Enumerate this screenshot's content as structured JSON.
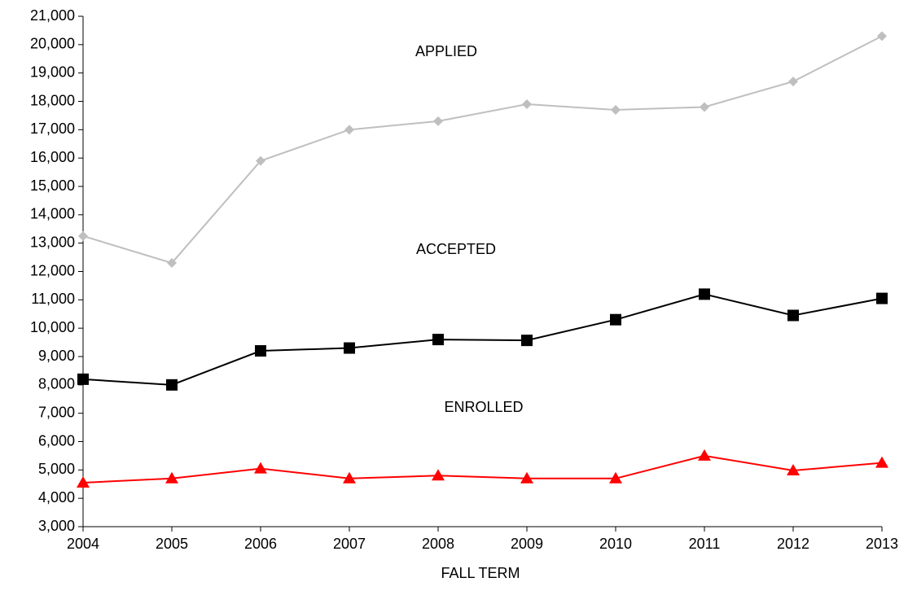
{
  "chart_data": {
    "type": "line",
    "x_label": "FALL TERM",
    "x": [
      2004,
      2005,
      2006,
      2007,
      2008,
      2009,
      2010,
      2011,
      2012,
      2013
    ],
    "xlim": [
      2004,
      2013
    ],
    "xticks": [
      2004,
      2005,
      2006,
      2007,
      2008,
      2009,
      2010,
      2011,
      2012,
      2013
    ],
    "ylim": [
      3000,
      21000
    ],
    "yticks": [
      {
        "value": 3000,
        "label": "3,000"
      },
      {
        "value": 4000,
        "label": "4,000"
      },
      {
        "value": 5000,
        "label": "5,000"
      },
      {
        "value": 6000,
        "label": "6,000"
      },
      {
        "value": 7000,
        "label": "7,000"
      },
      {
        "value": 8000,
        "label": "8,000"
      },
      {
        "value": 9000,
        "label": "9,000"
      },
      {
        "value": 10000,
        "label": "10,000"
      },
      {
        "value": 11000,
        "label": "11,000"
      },
      {
        "value": 12000,
        "label": "12,000"
      },
      {
        "value": 13000,
        "label": "13,000"
      },
      {
        "value": 14000,
        "label": "14,000"
      },
      {
        "value": 15000,
        "label": "15,000"
      },
      {
        "value": 16000,
        "label": "16,000"
      },
      {
        "value": 17000,
        "label": "17,000"
      },
      {
        "value": 18000,
        "label": "18,000"
      },
      {
        "value": 19000,
        "label": "19,000"
      },
      {
        "value": 20000,
        "label": "20,000"
      },
      {
        "value": 21000,
        "label": "21,000"
      }
    ],
    "grid": false,
    "annotations": [
      "APPLIED",
      "ACCEPTED",
      "ENROLLED"
    ],
    "series": [
      {
        "color": "#bfbfbf",
        "marker": "diamond",
        "values": [
          13250,
          12300,
          15900,
          17000,
          17300,
          17900,
          17700,
          17800,
          18700,
          20300
        ]
      },
      {
        "color": "#000000",
        "marker": "square",
        "values": [
          8200,
          8000,
          9200,
          9300,
          9600,
          9570,
          10300,
          11200,
          10450,
          11050
        ]
      },
      {
        "color": "#ff0000",
        "marker": "triangle",
        "values": [
          4550,
          4700,
          5050,
          4700,
          4800,
          4700,
          4700,
          5500,
          4980,
          5250
        ]
      }
    ]
  }
}
